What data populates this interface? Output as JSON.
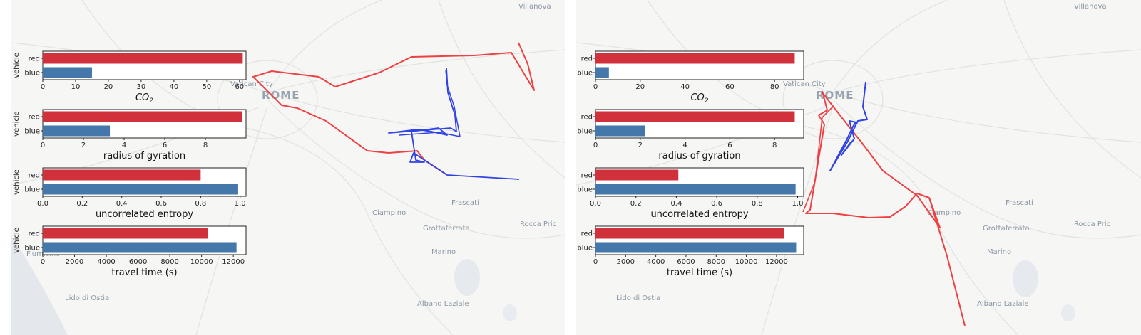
{
  "colors": {
    "red": "#d1313a",
    "blue": "#4477aa",
    "red_track": "#ef4044",
    "blue_track": "#3044e6"
  },
  "panels": [
    {
      "places": [
        "Villanova",
        "Vatican City",
        "ROME",
        "Ciampino",
        "Frascati",
        "Grottaferrata",
        "Marino",
        "Rocca Pric",
        "Lido di Ostia",
        "Albano Laziale",
        "Fiumicino"
      ],
      "chart_data": [
        {
          "type": "bar",
          "orientation": "horizontal",
          "ylabel": "vehicle",
          "xlabel": "CO2",
          "xlabel_sub": "2",
          "categories": [
            "red",
            "blue"
          ],
          "values": [
            61,
            15
          ],
          "xlim": [
            0,
            62
          ],
          "xticks": [
            0,
            10,
            20,
            30,
            40,
            50,
            60
          ]
        },
        {
          "type": "bar",
          "orientation": "horizontal",
          "ylabel": "vehicle",
          "xlabel": "radius of gyration",
          "categories": [
            "red",
            "blue"
          ],
          "values": [
            9.8,
            3.3
          ],
          "xlim": [
            0,
            10
          ],
          "xticks": [
            0,
            2,
            4,
            6,
            8
          ]
        },
        {
          "type": "bar",
          "orientation": "horizontal",
          "ylabel": "vehicle",
          "xlabel": "uncorrelated entropy",
          "categories": [
            "red",
            "blue"
          ],
          "values": [
            0.8,
            0.99
          ],
          "xlim": [
            0,
            1.03
          ],
          "xticks": [
            0.0,
            0.2,
            0.4,
            0.6,
            0.8,
            1.0
          ]
        },
        {
          "type": "bar",
          "orientation": "horizontal",
          "ylabel": "vehicle",
          "xlabel": "travel time (s)",
          "categories": [
            "red",
            "blue"
          ],
          "values": [
            10400,
            12200
          ],
          "xlim": [
            0,
            12800
          ],
          "xticks": [
            0,
            2000,
            4000,
            6000,
            8000,
            10000,
            12000
          ]
        }
      ]
    },
    {
      "places": [
        "Villanova",
        "Vatican City",
        "ROME",
        "Ciampino",
        "Frascati",
        "Grottaferrata",
        "Marino",
        "Rocca Pric",
        "Lido di Ostia",
        "Albano Laziale"
      ],
      "chart_data": [
        {
          "type": "bar",
          "orientation": "horizontal",
          "ylabel": "vehicle",
          "xlabel": "CO2",
          "xlabel_sub": "2",
          "categories": [
            "red",
            "blue"
          ],
          "values": [
            89,
            6
          ],
          "xlim": [
            0,
            93
          ],
          "xticks": [
            0,
            20,
            40,
            60,
            80
          ]
        },
        {
          "type": "bar",
          "orientation": "horizontal",
          "ylabel": "vehicle",
          "xlabel": "radius of gyration",
          "categories": [
            "red",
            "blue"
          ],
          "values": [
            8.9,
            2.2
          ],
          "xlim": [
            0,
            9.3
          ],
          "xticks": [
            0,
            2,
            4,
            6,
            8
          ]
        },
        {
          "type": "bar",
          "orientation": "horizontal",
          "ylabel": "vehicle",
          "xlabel": "uncorrelated entropy",
          "categories": [
            "red",
            "blue"
          ],
          "values": [
            0.41,
            0.99
          ],
          "xlim": [
            0,
            1.03
          ],
          "xticks": [
            0.0,
            0.2,
            0.4,
            0.6,
            0.8,
            1.0
          ]
        },
        {
          "type": "bar",
          "orientation": "horizontal",
          "ylabel": "vehicle",
          "xlabel": "travel time (s)",
          "categories": [
            "red",
            "blue"
          ],
          "values": [
            12500,
            13300
          ],
          "xlim": [
            0,
            13800
          ],
          "xticks": [
            0,
            2000,
            4000,
            6000,
            8000,
            10000,
            12000
          ]
        }
      ]
    }
  ]
}
